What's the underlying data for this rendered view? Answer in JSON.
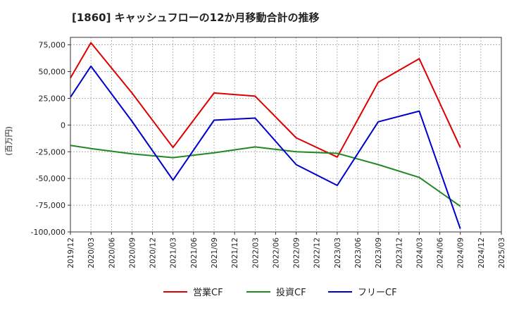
{
  "chart_data": {
    "type": "line",
    "title": "[1860]  キャッシュフローの12か月移動合計の推移",
    "ylabel": "(百万円)",
    "xlabel": "",
    "ylim": [
      -100000,
      82000
    ],
    "yticks": [
      75000,
      50000,
      25000,
      0,
      -25000,
      -50000,
      -75000,
      -100000
    ],
    "ytick_labels": [
      "75,000",
      "50,000",
      "25,000",
      "0",
      "-25,000",
      "-50,000",
      "-75,000",
      "-100,000"
    ],
    "x_ticks": [
      "2019/12",
      "2020/03",
      "2020/06",
      "2020/09",
      "2020/12",
      "2021/03",
      "2021/06",
      "2021/09",
      "2021/12",
      "2022/03",
      "2022/06",
      "2022/09",
      "2022/12",
      "2023/03",
      "2023/06",
      "2023/09",
      "2023/12",
      "2024/03",
      "2024/06",
      "2024/09",
      "2024/12",
      "2025/03"
    ],
    "grid": true,
    "legend_position": "bottom-center",
    "series": [
      {
        "name": "営業CF",
        "color": "#dd0000",
        "x": [
          "2019/12",
          "2020/03",
          "2020/09",
          "2021/03",
          "2021/09",
          "2022/03",
          "2022/09",
          "2023/03",
          "2023/09",
          "2024/03",
          "2024/09"
        ],
        "values": [
          44000,
          77000,
          30000,
          -21000,
          30000,
          27000,
          -12000,
          -30000,
          40000,
          62000,
          -21000
        ]
      },
      {
        "name": "投資CF",
        "color": "#228822",
        "x": [
          "2019/12",
          "2020/03",
          "2020/09",
          "2021/03",
          "2021/09",
          "2022/03",
          "2022/09",
          "2023/03",
          "2023/09",
          "2024/03",
          "2024/09"
        ],
        "values": [
          -19000,
          -22000,
          -27000,
          -30500,
          -26000,
          -20500,
          -25000,
          -26500,
          -37000,
          -49000,
          -76000
        ]
      },
      {
        "name": "フリーCF",
        "color": "#0000cc",
        "x": [
          "2019/12",
          "2020/03",
          "2020/09",
          "2021/03",
          "2021/09",
          "2022/03",
          "2022/09",
          "2023/03",
          "2023/09",
          "2024/03",
          "2024/09"
        ],
        "values": [
          26000,
          55000,
          3500,
          -51500,
          4500,
          6500,
          -37000,
          -56500,
          3000,
          13000,
          -97000
        ]
      }
    ]
  }
}
